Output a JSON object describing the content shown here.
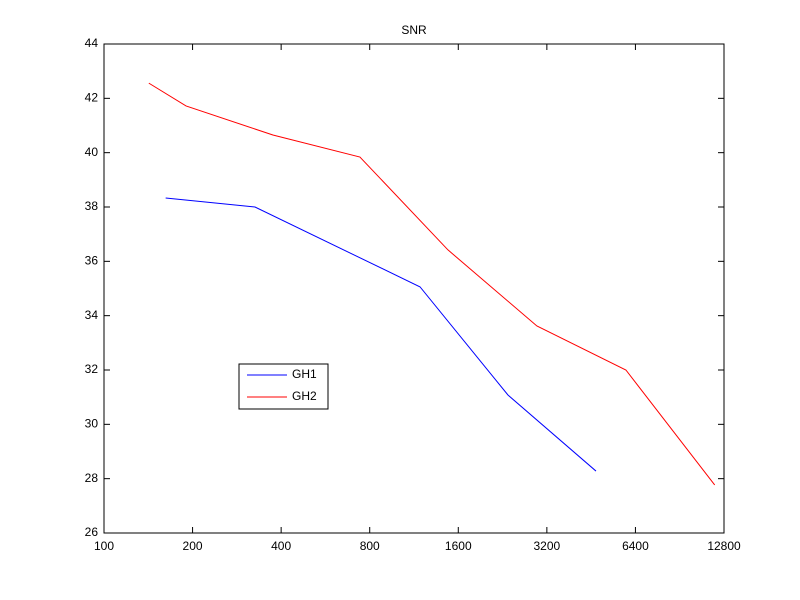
{
  "chart_data": {
    "type": "line",
    "title": "SNR",
    "xscale": "log",
    "log_base": 2,
    "xlim": [
      100,
      12800
    ],
    "xticks": [
      100,
      200,
      400,
      800,
      1600,
      3200,
      6400,
      12800
    ],
    "ylim": [
      26,
      44
    ],
    "yticks": [
      26,
      28,
      30,
      32,
      34,
      36,
      38,
      40,
      42,
      44
    ],
    "grid": false,
    "legend_position": "southwest",
    "series": [
      {
        "name": "GH1",
        "color": "#0000ff",
        "x": [
          162,
          326,
          1186,
          2360,
          4700
        ],
        "values": [
          38.33,
          38.0,
          35.06,
          31.08,
          28.28
        ]
      },
      {
        "name": "GH2",
        "color": "#ff0000",
        "x": [
          142,
          190,
          375,
          741,
          1476,
          2960,
          5940,
          11900
        ],
        "values": [
          42.56,
          41.72,
          40.65,
          39.84,
          36.42,
          33.62,
          32.0,
          27.77
        ]
      }
    ]
  }
}
